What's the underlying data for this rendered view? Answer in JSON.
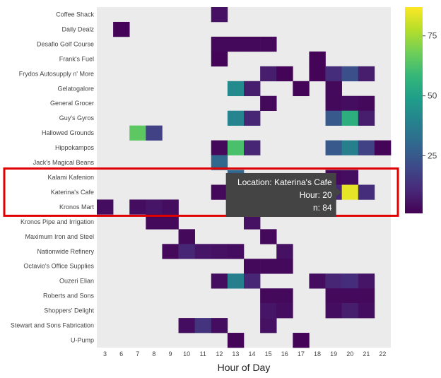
{
  "chart_data": {
    "type": "heatmap",
    "xlabel": "Hour of Day",
    "x": [
      3,
      6,
      7,
      8,
      9,
      10,
      11,
      12,
      13,
      14,
      15,
      16,
      17,
      18,
      19,
      20,
      21,
      22
    ],
    "y": [
      "Coffee Shack",
      "Daily Dealz",
      "Desafio Golf Course",
      "Frank's Fuel",
      "Frydos Autosupply n' More",
      "Gelatogalore",
      "General Grocer",
      "Guy's Gyros",
      "Hallowed Grounds",
      "Hippokampos",
      "Jack's Magical Beans",
      "Kalami Kafenion",
      "Katerina's Cafe",
      "Kronos Mart",
      "Kronos Pipe and Irrigation",
      "Maximum Iron and Steel",
      "Nationwide Refinery",
      "Octavio's Office Supplies",
      "Ouzeri Elian",
      "Roberts and Sons",
      "Shoppers' Delight",
      "Stewart and Sons Fabrication",
      "U-Pump"
    ],
    "cells": [
      {
        "loc": "Coffee Shack",
        "hour": 12,
        "n": 5
      },
      {
        "loc": "Daily Dealz",
        "hour": 6,
        "n": 2
      },
      {
        "loc": "Desafio Golf Course",
        "hour": 12,
        "n": 3
      },
      {
        "loc": "Desafio Golf Course",
        "hour": 13,
        "n": 3
      },
      {
        "loc": "Desafio Golf Course",
        "hour": 14,
        "n": 3
      },
      {
        "loc": "Desafio Golf Course",
        "hour": 15,
        "n": 3
      },
      {
        "loc": "Frank's Fuel",
        "hour": 12,
        "n": 2
      },
      {
        "loc": "Frank's Fuel",
        "hour": 18,
        "n": 2
      },
      {
        "loc": "Frydos Autosupply n' More",
        "hour": 15,
        "n": 8
      },
      {
        "loc": "Frydos Autosupply n' More",
        "hour": 16,
        "n": 2
      },
      {
        "loc": "Frydos Autosupply n' More",
        "hour": 18,
        "n": 2
      },
      {
        "loc": "Frydos Autosupply n' More",
        "hour": 19,
        "n": 12
      },
      {
        "loc": "Frydos Autosupply n' More",
        "hour": 20,
        "n": 22
      },
      {
        "loc": "Frydos Autosupply n' More",
        "hour": 21,
        "n": 8
      },
      {
        "loc": "Gelatogalore",
        "hour": 13,
        "n": 42
      },
      {
        "loc": "Gelatogalore",
        "hour": 14,
        "n": 8
      },
      {
        "loc": "Gelatogalore",
        "hour": 17,
        "n": 2
      },
      {
        "loc": "Gelatogalore",
        "hour": 19,
        "n": 3
      },
      {
        "loc": "General Grocer",
        "hour": 15,
        "n": 3
      },
      {
        "loc": "General Grocer",
        "hour": 19,
        "n": 3
      },
      {
        "loc": "General Grocer",
        "hour": 20,
        "n": 4
      },
      {
        "loc": "General Grocer",
        "hour": 21,
        "n": 3
      },
      {
        "loc": "Guy's Gyros",
        "hour": 13,
        "n": 40
      },
      {
        "loc": "Guy's Gyros",
        "hour": 14,
        "n": 10
      },
      {
        "loc": "Guy's Gyros",
        "hour": 19,
        "n": 25
      },
      {
        "loc": "Guy's Gyros",
        "hour": 20,
        "n": 55
      },
      {
        "loc": "Guy's Gyros",
        "hour": 21,
        "n": 8
      },
      {
        "loc": "Hallowed Grounds",
        "hour": 7,
        "n": 65
      },
      {
        "loc": "Hallowed Grounds",
        "hour": 8,
        "n": 18
      },
      {
        "loc": "Hippokampos",
        "hour": 12,
        "n": 3
      },
      {
        "loc": "Hippokampos",
        "hour": 13,
        "n": 62
      },
      {
        "loc": "Hippokampos",
        "hour": 14,
        "n": 10
      },
      {
        "loc": "Hippokampos",
        "hour": 19,
        "n": 25
      },
      {
        "loc": "Hippokampos",
        "hour": 20,
        "n": 38
      },
      {
        "loc": "Hippokampos",
        "hour": 21,
        "n": 18
      },
      {
        "loc": "Hippokampos",
        "hour": 22,
        "n": 2
      },
      {
        "loc": "Jack's Magical Beans",
        "hour": 12,
        "n": 30
      },
      {
        "loc": "Kalami Kafenion",
        "hour": 13,
        "n": 30
      },
      {
        "loc": "Kalami Kafenion",
        "hour": 19,
        "n": 3
      },
      {
        "loc": "Kalami Kafenion",
        "hour": 20,
        "n": 4
      },
      {
        "loc": "Katerina's Cafe",
        "hour": 12,
        "n": 3
      },
      {
        "loc": "Katerina's Cafe",
        "hour": 19,
        "n": 10
      },
      {
        "loc": "Katerina's Cafe",
        "hour": 20,
        "n": 84
      },
      {
        "loc": "Katerina's Cafe",
        "hour": 21,
        "n": 12
      },
      {
        "loc": "Kronos Mart",
        "hour": 3,
        "n": 4
      },
      {
        "loc": "Kronos Mart",
        "hour": 7,
        "n": 4
      },
      {
        "loc": "Kronos Mart",
        "hour": 8,
        "n": 6
      },
      {
        "loc": "Kronos Mart",
        "hour": 9,
        "n": 4
      },
      {
        "loc": "Kronos Pipe and Irrigation",
        "hour": 8,
        "n": 3
      },
      {
        "loc": "Kronos Pipe and Irrigation",
        "hour": 9,
        "n": 3
      },
      {
        "loc": "Kronos Pipe and Irrigation",
        "hour": 14,
        "n": 5
      },
      {
        "loc": "Maximum Iron and Steel",
        "hour": 10,
        "n": 3
      },
      {
        "loc": "Maximum Iron and Steel",
        "hour": 15,
        "n": 3
      },
      {
        "loc": "Nationwide Refinery",
        "hour": 9,
        "n": 3
      },
      {
        "loc": "Nationwide Refinery",
        "hour": 10,
        "n": 10
      },
      {
        "loc": "Nationwide Refinery",
        "hour": 11,
        "n": 6
      },
      {
        "loc": "Nationwide Refinery",
        "hour": 12,
        "n": 5
      },
      {
        "loc": "Nationwide Refinery",
        "hour": 13,
        "n": 4
      },
      {
        "loc": "Nationwide Refinery",
        "hour": 16,
        "n": 5
      },
      {
        "loc": "Octavio's Office Supplies",
        "hour": 14,
        "n": 3
      },
      {
        "loc": "Octavio's Office Supplies",
        "hour": 15,
        "n": 3
      },
      {
        "loc": "Octavio's Office Supplies",
        "hour": 16,
        "n": 3
      },
      {
        "loc": "Ouzeri Elian",
        "hour": 12,
        "n": 4
      },
      {
        "loc": "Ouzeri Elian",
        "hour": 13,
        "n": 38
      },
      {
        "loc": "Ouzeri Elian",
        "hour": 14,
        "n": 10
      },
      {
        "loc": "Ouzeri Elian",
        "hour": 18,
        "n": 4
      },
      {
        "loc": "Ouzeri Elian",
        "hour": 19,
        "n": 10
      },
      {
        "loc": "Ouzeri Elian",
        "hour": 20,
        "n": 12
      },
      {
        "loc": "Ouzeri Elian",
        "hour": 21,
        "n": 6
      },
      {
        "loc": "Roberts and Sons",
        "hour": 15,
        "n": 3
      },
      {
        "loc": "Roberts and Sons",
        "hour": 16,
        "n": 3
      },
      {
        "loc": "Roberts and Sons",
        "hour": 19,
        "n": 3
      },
      {
        "loc": "Roberts and Sons",
        "hour": 20,
        "n": 3
      },
      {
        "loc": "Roberts and Sons",
        "hour": 21,
        "n": 3
      },
      {
        "loc": "Shoppers' Delight",
        "hour": 15,
        "n": 6
      },
      {
        "loc": "Shoppers' Delight",
        "hour": 16,
        "n": 4
      },
      {
        "loc": "Shoppers' Delight",
        "hour": 19,
        "n": 4
      },
      {
        "loc": "Shoppers' Delight",
        "hour": 20,
        "n": 8
      },
      {
        "loc": "Shoppers' Delight",
        "hour": 21,
        "n": 4
      },
      {
        "loc": "Stewart and Sons Fabrication",
        "hour": 10,
        "n": 4
      },
      {
        "loc": "Stewart and Sons Fabrication",
        "hour": 11,
        "n": 14
      },
      {
        "loc": "Stewart and Sons Fabrication",
        "hour": 12,
        "n": 4
      },
      {
        "loc": "Stewart and Sons Fabrication",
        "hour": 15,
        "n": 5
      },
      {
        "loc": "U-Pump",
        "hour": 13,
        "n": 2
      },
      {
        "loc": "U-Pump",
        "hour": 17,
        "n": 2
      }
    ],
    "colorbar": {
      "ticks": [
        25,
        50,
        75
      ],
      "min": 1,
      "max": 87
    },
    "colorscale": [
      "#440154",
      "#482878",
      "#3e4989",
      "#31688e",
      "#26828e",
      "#1f9e89",
      "#35b779",
      "#6ece58",
      "#b5de2b",
      "#fde725"
    ]
  },
  "tooltip": {
    "target": {
      "loc": "Katerina's Cafe",
      "hour": 20
    },
    "line1": "Location: Katerina's Cafe",
    "line2": "Hour: 20",
    "line3": "n: 84"
  },
  "highlight": {
    "rows": [
      "Kalami Kafenion",
      "Katerina's Cafe",
      "Kronos Mart"
    ],
    "color": "#e00000"
  },
  "colors": {
    "plot_bg": "#ebebeb",
    "tooltip_bg": "#444444"
  }
}
